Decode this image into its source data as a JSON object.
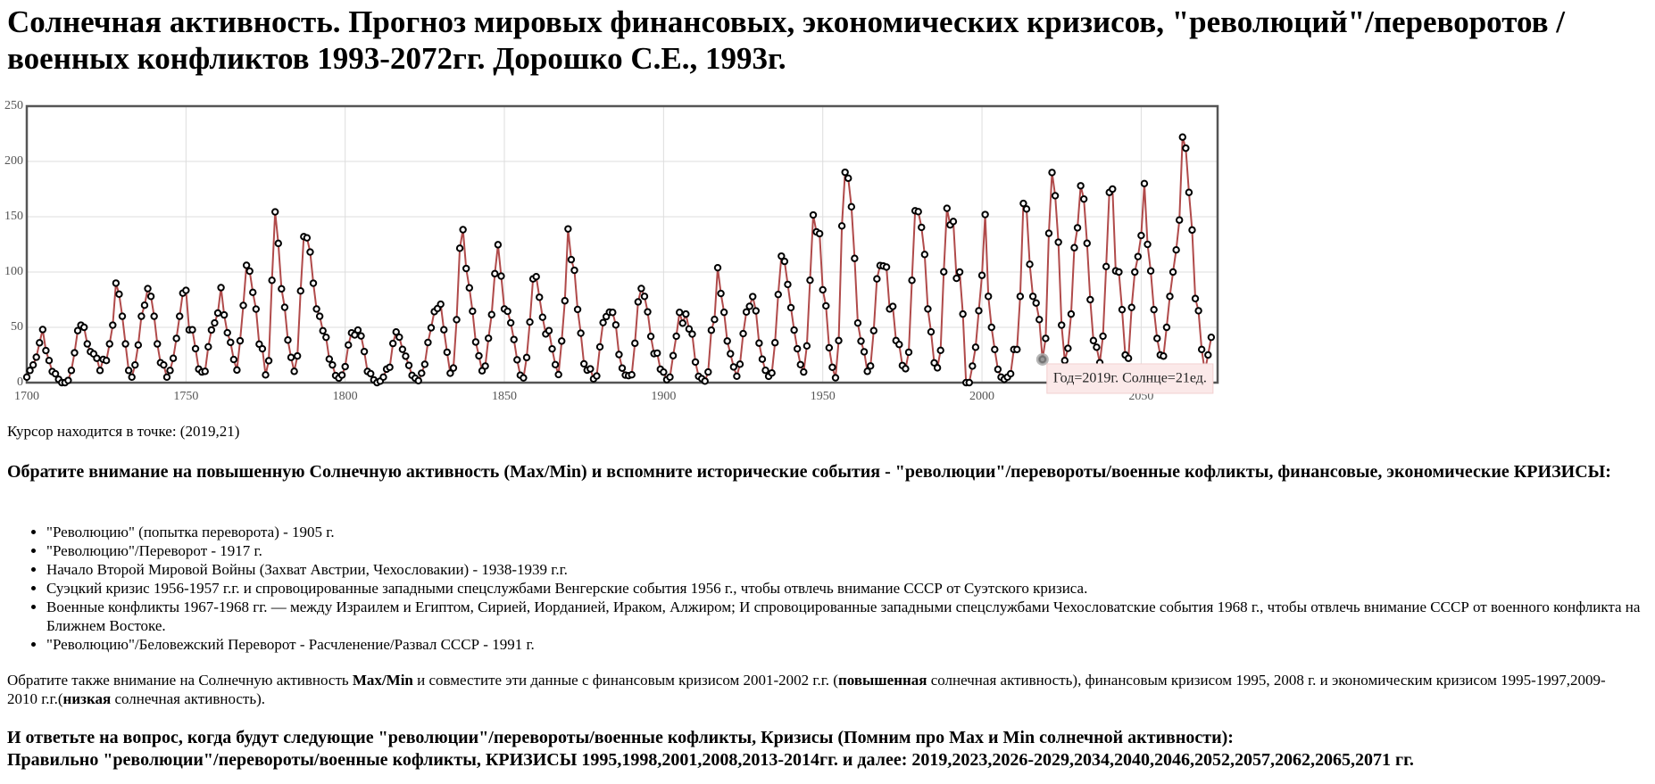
{
  "header": {
    "title": "Солнечная активность. Прогноз мировых финансовых, экономических кризисов, \"революций\"/переворотов /военных конфликтов 1993-2072гг. Дорошко С.Е., 1993г."
  },
  "chart_data": {
    "type": "line",
    "color": "#b04a4a",
    "marker_color": "#000000",
    "grid": true,
    "xlim": [
      1700,
      2074
    ],
    "ylim": [
      0,
      250
    ],
    "xticks": [
      1700,
      1750,
      1800,
      1850,
      1900,
      1950,
      2000,
      2050
    ],
    "yticks": [
      0,
      50,
      100,
      150,
      200,
      250
    ],
    "x": [
      1700,
      1701,
      1702,
      1703,
      1704,
      1705,
      1706,
      1707,
      1708,
      1709,
      1710,
      1711,
      1712,
      1713,
      1714,
      1715,
      1716,
      1717,
      1718,
      1719,
      1720,
      1721,
      1722,
      1723,
      1724,
      1725,
      1726,
      1727,
      1728,
      1729,
      1730,
      1731,
      1732,
      1733,
      1734,
      1735,
      1736,
      1737,
      1738,
      1739,
      1740,
      1741,
      1742,
      1743,
      1744,
      1745,
      1746,
      1747,
      1748,
      1749,
      1750,
      1751,
      1752,
      1753,
      1754,
      1755,
      1756,
      1757,
      1758,
      1759,
      1760,
      1761,
      1762,
      1763,
      1764,
      1765,
      1766,
      1767,
      1768,
      1769,
      1770,
      1771,
      1772,
      1773,
      1774,
      1775,
      1776,
      1777,
      1778,
      1779,
      1780,
      1781,
      1782,
      1783,
      1784,
      1785,
      1786,
      1787,
      1788,
      1789,
      1790,
      1791,
      1792,
      1793,
      1794,
      1795,
      1796,
      1797,
      1798,
      1799,
      1800,
      1801,
      1802,
      1803,
      1804,
      1805,
      1806,
      1807,
      1808,
      1809,
      1810,
      1811,
      1812,
      1813,
      1814,
      1815,
      1816,
      1817,
      1818,
      1819,
      1820,
      1821,
      1822,
      1823,
      1824,
      1825,
      1826,
      1827,
      1828,
      1829,
      1830,
      1831,
      1832,
      1833,
      1834,
      1835,
      1836,
      1837,
      1838,
      1839,
      1840,
      1841,
      1842,
      1843,
      1844,
      1845,
      1846,
      1847,
      1848,
      1849,
      1850,
      1851,
      1852,
      1853,
      1854,
      1855,
      1856,
      1857,
      1858,
      1859,
      1860,
      1861,
      1862,
      1863,
      1864,
      1865,
      1866,
      1867,
      1868,
      1869,
      1870,
      1871,
      1872,
      1873,
      1874,
      1875,
      1876,
      1877,
      1878,
      1879,
      1880,
      1881,
      1882,
      1883,
      1884,
      1885,
      1886,
      1887,
      1888,
      1889,
      1890,
      1891,
      1892,
      1893,
      1894,
      1895,
      1896,
      1897,
      1898,
      1899,
      1900,
      1901,
      1902,
      1903,
      1904,
      1905,
      1906,
      1907,
      1908,
      1909,
      1910,
      1911,
      1912,
      1913,
      1914,
      1915,
      1916,
      1917,
      1918,
      1919,
      1920,
      1921,
      1922,
      1923,
      1924,
      1925,
      1926,
      1927,
      1928,
      1929,
      1930,
      1931,
      1932,
      1933,
      1934,
      1935,
      1936,
      1937,
      1938,
      1939,
      1940,
      1941,
      1942,
      1943,
      1944,
      1945,
      1946,
      1947,
      1948,
      1949,
      1950,
      1951,
      1952,
      1953,
      1954,
      1955,
      1956,
      1957,
      1958,
      1959,
      1960,
      1961,
      1962,
      1963,
      1964,
      1965,
      1966,
      1967,
      1968,
      1969,
      1970,
      1971,
      1972,
      1973,
      1974,
      1975,
      1976,
      1977,
      1978,
      1979,
      1980,
      1981,
      1982,
      1983,
      1984,
      1985,
      1986,
      1987,
      1988,
      1989,
      1990,
      1991,
      1992,
      1993,
      1994,
      1995,
      1996,
      1997,
      1998,
      1999,
      2000,
      2001,
      2002,
      2003,
      2004,
      2005,
      2006,
      2007,
      2008,
      2009,
      2010,
      2011,
      2012,
      2013,
      2014,
      2015,
      2016,
      2017,
      2018,
      2019,
      2020,
      2021,
      2022,
      2023,
      2024,
      2025,
      2026,
      2027,
      2028,
      2029,
      2030,
      2031,
      2032,
      2033,
      2034,
      2035,
      2036,
      2037,
      2038,
      2039,
      2040,
      2041,
      2042,
      2043,
      2044,
      2045,
      2046,
      2047,
      2048,
      2049,
      2050,
      2051,
      2052,
      2053,
      2054,
      2055,
      2056,
      2057,
      2058,
      2059,
      2060,
      2061,
      2062,
      2063,
      2064,
      2065,
      2066,
      2067,
      2068,
      2069,
      2070,
      2071,
      2072
    ],
    "series": [
      {
        "values": [
          5,
          11,
          16,
          23,
          36,
          48,
          29,
          20,
          10,
          8,
          3,
          0,
          0,
          2,
          11,
          27,
          47,
          52,
          50,
          35,
          28,
          26,
          22,
          11,
          21,
          20,
          35,
          52,
          90,
          80,
          60,
          35,
          11,
          5,
          16,
          34,
          60,
          70,
          85,
          78,
          60,
          35,
          18,
          16,
          5,
          11,
          22,
          40,
          60,
          80.9,
          83.4,
          47.7,
          47.8,
          30.7,
          12.2,
          9.6,
          10.2,
          32.4,
          47.6,
          54,
          62.9,
          85.9,
          61.2,
          45.1,
          36.4,
          20.9,
          11.4,
          37.8,
          69.8,
          106.1,
          100.8,
          81.6,
          66.5,
          34.8,
          30.6,
          7,
          19.8,
          92.5,
          154.4,
          125.9,
          84.8,
          68.1,
          38.5,
          22.8,
          10.2,
          24.1,
          82.9,
          132,
          130.9,
          118.1,
          89.9,
          66.6,
          60,
          46.9,
          41,
          21.3,
          16,
          6.4,
          4.1,
          6.8,
          14.5,
          34,
          45,
          43.1,
          47.5,
          42.2,
          28.1,
          10.1,
          8.1,
          2.5,
          0,
          1.4,
          5,
          12.2,
          13.9,
          35.4,
          45.8,
          41.1,
          30.1,
          23.9,
          15.6,
          6.6,
          4,
          1.8,
          8.5,
          16.6,
          36.3,
          49.6,
          64.2,
          67,
          70.9,
          47.8,
          27.5,
          8.5,
          13.2,
          56.9,
          121.5,
          138.3,
          103.2,
          85.7,
          64.6,
          36.7,
          24.2,
          10.7,
          15,
          40.1,
          61.5,
          98.5,
          124.7,
          96.3,
          66.6,
          64.5,
          54.1,
          39,
          20.6,
          6.7,
          4.3,
          22.7,
          54.8,
          93.8,
          95.8,
          77.2,
          59.1,
          44,
          47,
          30.5,
          16.3,
          7.3,
          37.6,
          74,
          139,
          111.2,
          101.6,
          66.2,
          44.7,
          17,
          11.3,
          12.4,
          3.4,
          6,
          32.3,
          54.3,
          59.7,
          63.7,
          63.5,
          52.2,
          25.4,
          13.1,
          6.8,
          6.3,
          7.1,
          35.6,
          73,
          85.1,
          78,
          64,
          41.8,
          26.2,
          26.7,
          12.1,
          9.5,
          2.7,
          5,
          24.4,
          42,
          63.5,
          53.8,
          62,
          48.5,
          43.9,
          18.6,
          5.7,
          3.6,
          1.4,
          9.6,
          47.4,
          57.1,
          103.9,
          80.6,
          63.6,
          37.6,
          26.1,
          14.2,
          5.8,
          16.7,
          44.3,
          63.9,
          69,
          77.8,
          64.9,
          35.7,
          21.2,
          11.1,
          5.7,
          8.7,
          36.1,
          79.7,
          114.4,
          109.6,
          88.8,
          67.8,
          47.5,
          30.6,
          16.3,
          9.6,
          33.2,
          92.6,
          151.6,
          136.3,
          134.7,
          83.9,
          69.4,
          31.5,
          13.9,
          4.4,
          38,
          141.7,
          190.2,
          184.8,
          159,
          112.3,
          53.9,
          37.5,
          27.9,
          10.2,
          15.1,
          47,
          93.8,
          105.9,
          105.5,
          104.5,
          66.6,
          68.9,
          38,
          34.5,
          15.5,
          12.6,
          27.5,
          92.5,
          155.4,
          154.6,
          140.4,
          115.9,
          66.6,
          45.9,
          17.9,
          13.4,
          29.2,
          100.2,
          157.6,
          142.6,
          145.7,
          94.3,
          100,
          62,
          0,
          0,
          15,
          32,
          65,
          97,
          152,
          78,
          50,
          30,
          12,
          5,
          3,
          5,
          8,
          30,
          30,
          78,
          162,
          157,
          107,
          78,
          72,
          57,
          21,
          40,
          135,
          190,
          169,
          127,
          52,
          20,
          31,
          62,
          122,
          140,
          178,
          166,
          126,
          75,
          38,
          32,
          18,
          42,
          105,
          172,
          175,
          101,
          100,
          66,
          25,
          22,
          68,
          100,
          114,
          133,
          180,
          125,
          101,
          66,
          40,
          25,
          24,
          50,
          78,
          100,
          120,
          147,
          222,
          212,
          172,
          138,
          76,
          65,
          30,
          10,
          25,
          41
        ]
      }
    ],
    "cursor": {
      "x": 2019,
      "y": 21
    },
    "tooltip": "Год=2019г. Солнце=21ед."
  },
  "cursor_text": "Курсор находится в точке: (2019,21)",
  "heading": "Обратите внимание на повышенную Солнечную активность (Max/Min) и вспомните исторические события - \"революции\"/перевороты/военные кофликты, финансовые, экономические КРИЗИСЫ:",
  "list": [
    "\"Революцию\" (попытка переворота) - 1905 г.",
    "\"Революцию\"/Переворот - 1917 г.",
    "Начало Второй Мировой Войны (Захват Австрии, Чехословакии) - 1938-1939 г.г.",
    "Суэцкий кризис 1956-1957 г.г. и спровоцированные западными спецслужбами Венгерские события 1956 г., чтобы отвлечь внимание СССР от Суэтского кризиса.",
    "Военные конфликты 1967-1968 гг. — между Израилем и Египтом, Сирией, Иорданией, Ираком, Алжиром; И спровоцированные западными спецслужбами Чехословатские события 1968 г., чтобы отвлечь внимание СССР от военного конфликта на Ближнем Востоке.",
    "\"Революцию\"/Беловежский Переворот - Расчленение/Развал СССР - 1991 г."
  ],
  "paragraph": [
    "Обратите также внимание на Солнечную активность ",
    "Max/Min",
    " и совместите эти данные с финансовым кризисом 2001-2002 г.г. (",
    "повышенная",
    " солнечная активность), финансовым кризисом 1995, 2008 г. и экономическим кризисом 1995-1997,2009-2010 г.г.(",
    "низкая",
    " солнечная активность)."
  ],
  "question": "И ответьте на вопрос, когда будут следующие \"революции\"/перевороты/военные кофликты, Кризисы (Помним про Max и Min солнечной активности):",
  "answer": "Правильно \"революции\"/перевороты/военные кофликты, КРИЗИСЫ 1995,1998,2001,2008,2013-2014гг. и далее: 2019,2023,2026-2029,2034,2040,2046,2052,2057,2062,2065,2071 гг."
}
